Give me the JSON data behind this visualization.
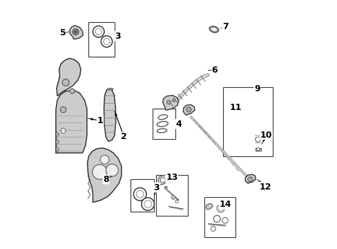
{
  "bg_color": "#ffffff",
  "line_color": "#333333",
  "figsize": [
    4.89,
    3.6
  ],
  "dpi": 100,
  "font_size_num": 8
}
